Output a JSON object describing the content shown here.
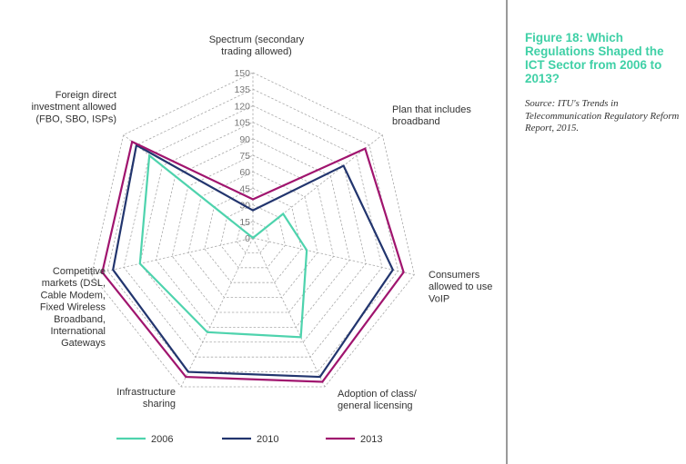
{
  "sidebar": {
    "title": "Figure 18: Which Regulations Shaped the ICT Sector from 2006 to 2013?",
    "source": "Source: ITU's Trends in Telecommunication Regulatory Reform Report, 2015."
  },
  "chart_data": {
    "type": "radar",
    "axes": [
      [
        "Spectrum (secondary",
        "trading allowed)"
      ],
      [
        "Plan that includes",
        "broadband"
      ],
      [
        "Consumers",
        "allowed to use",
        "VoIP"
      ],
      [
        "Adoption of class/",
        "general licensing"
      ],
      [
        "Infrastructure",
        "sharing"
      ],
      [
        "Competitive",
        "markets (DSL,",
        "Cable Modem,",
        "Fixed Wireless",
        "Broadband,",
        "International",
        "Gateways"
      ],
      [
        "Foreign direct",
        "investment allowed",
        "(FBO, SBO, ISPs)"
      ]
    ],
    "ticks": [
      0,
      15,
      30,
      45,
      60,
      75,
      90,
      105,
      120,
      135,
      150
    ],
    "rmax": 150,
    "series": [
      {
        "name": "2006",
        "color": "#4ed3ad",
        "values": [
          0,
          35,
          50,
          100,
          95,
          105,
          120
        ]
      },
      {
        "name": "2010",
        "color": "#22356e",
        "values": [
          25,
          105,
          130,
          140,
          135,
          130,
          135
        ]
      },
      {
        "name": "2013",
        "color": "#a0146e",
        "values": [
          35,
          130,
          140,
          145,
          140,
          140,
          140
        ]
      }
    ],
    "legend_position": "bottom"
  }
}
